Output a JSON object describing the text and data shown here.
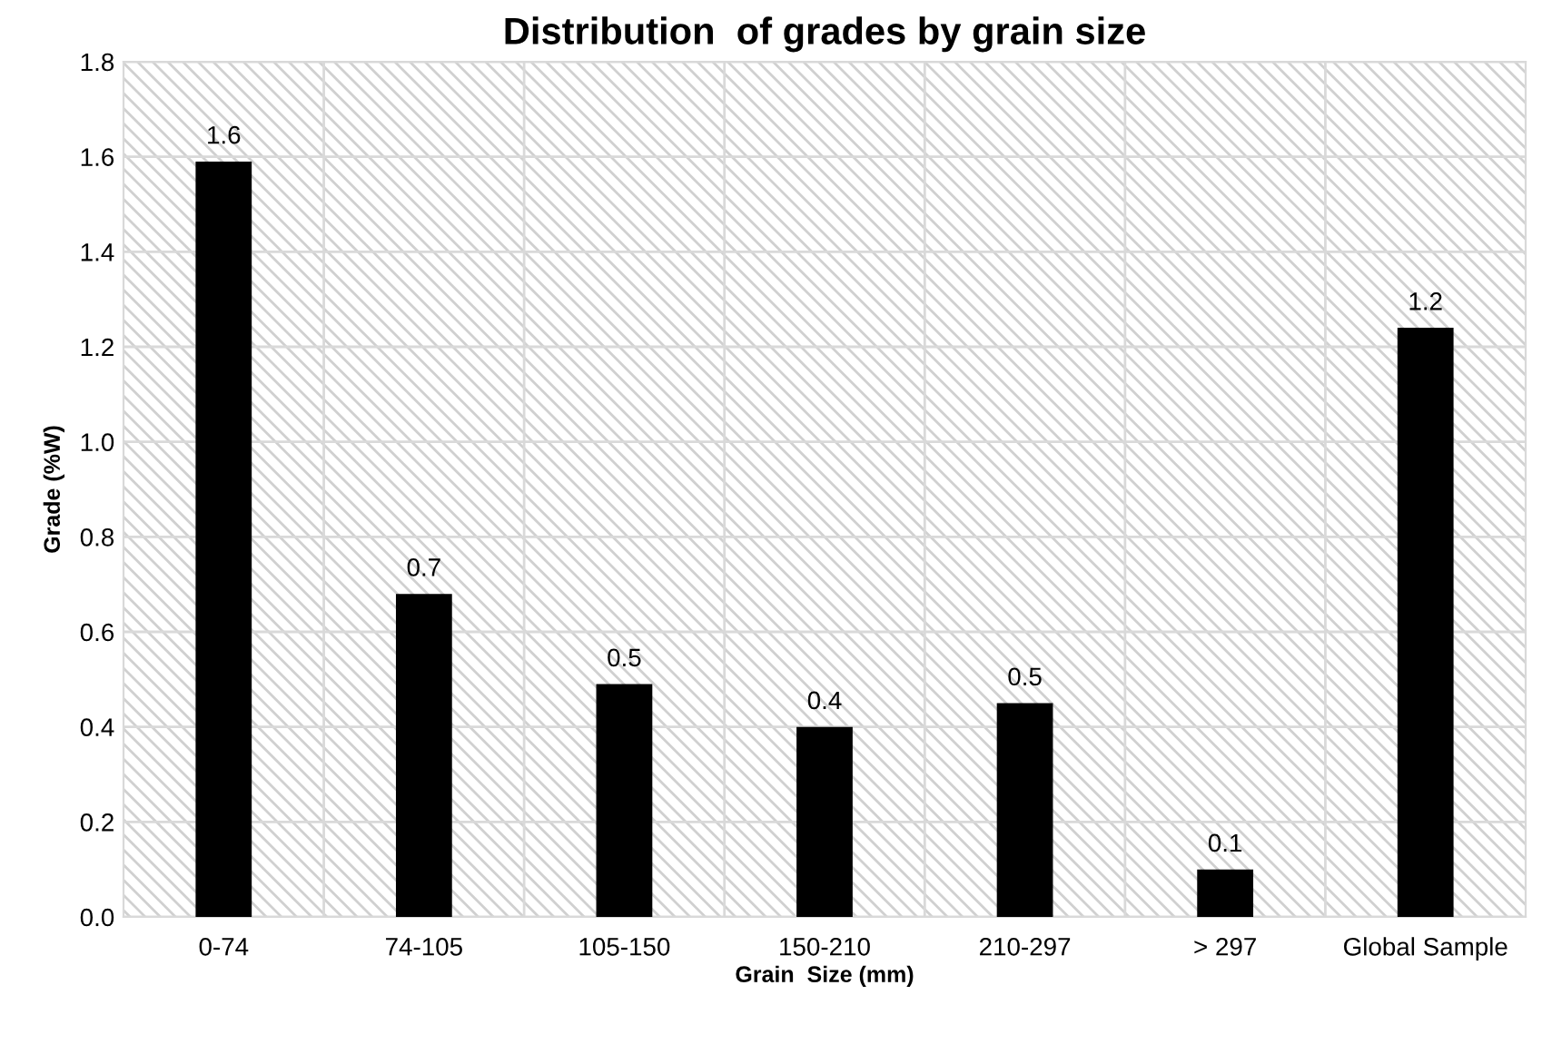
{
  "chart_data": {
    "type": "bar",
    "title": "Distribution  of grades by grain size",
    "xlabel": "Grain  Size (mm)",
    "ylabel": "Grade (%W)",
    "categories": [
      "0-74",
      "74-105",
      "105-150",
      "150-210",
      "210-297",
      "> 297",
      "Global Sample"
    ],
    "values": [
      1.59,
      0.68,
      0.49,
      0.4,
      0.45,
      0.1,
      1.24
    ],
    "value_labels": [
      "1.6",
      "0.7",
      "0.5",
      "0.4",
      "0.5",
      "0.1",
      "1.2"
    ],
    "color": "#000000",
    "ylim": [
      0,
      1.8
    ],
    "yticks": [
      {
        "value": 0,
        "label": "0.0"
      },
      0.2,
      0.4,
      0.6,
      0.8,
      {
        "value": 1,
        "label": "1.0"
      },
      1.2,
      1.4,
      1.6,
      1.8
    ],
    "grid": true
  }
}
